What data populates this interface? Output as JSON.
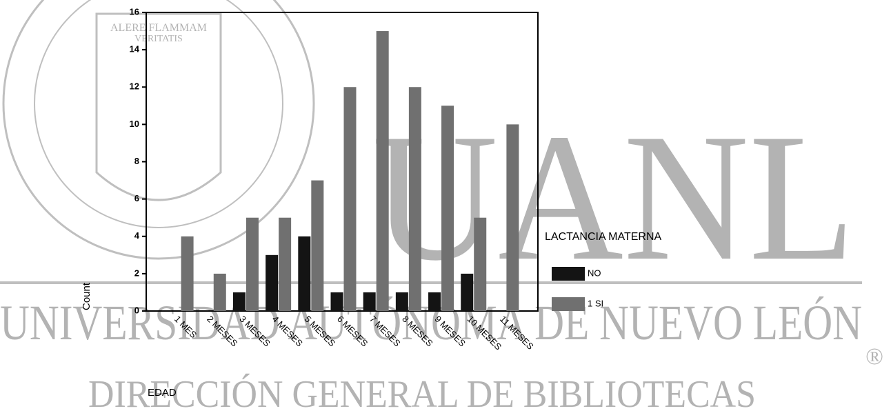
{
  "chart_data": {
    "type": "bar",
    "categories": [
      "1 MES",
      "2 MESES",
      "3 MESES",
      "4 MESES",
      "5 MESES",
      "6 MESES",
      "7 MESES",
      "8 MESES",
      "9 MESES",
      "10 MESES",
      "11 MESES"
    ],
    "series": [
      {
        "name": "NO",
        "color": "#141414",
        "values": [
          0,
          0,
          1,
          3,
          4,
          1,
          1,
          1,
          1,
          2,
          0
        ]
      },
      {
        "name": "1 SI",
        "color": "#707070",
        "values": [
          4,
          2,
          5,
          5,
          7,
          12,
          15,
          12,
          11,
          5,
          10
        ]
      }
    ],
    "ylim": [
      0,
      16
    ],
    "yticks": [
      0,
      2,
      4,
      6,
      8,
      10,
      12,
      14,
      16
    ],
    "y_label": "Count",
    "x_label": "EDAD",
    "legend_title": "LACTANCIA MATERNA"
  },
  "watermark": {
    "letters": "UANL",
    "university": "UNIVERSIDAD AUTÓNOMA DE NUEVO LEÓN",
    "library": "DIRECCIÓN GENERAL DE BIBLIOTECAS",
    "registered": "®",
    "motto": [
      "ALERE FLAMMAM",
      "VERITATIS"
    ]
  }
}
